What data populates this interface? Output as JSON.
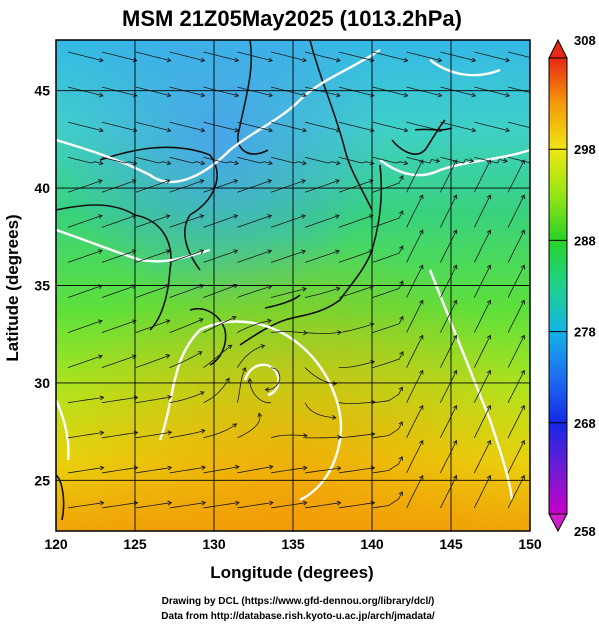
{
  "title": "MSM 21Z05May2025 (1013.2hPa)",
  "map": {
    "lon_min": 120,
    "lon_max": 150,
    "lat_min": 22.4,
    "lat_max": 47.6,
    "x_ticks": [
      "120",
      "125",
      "130",
      "135",
      "140",
      "145",
      "150"
    ],
    "y_ticks": [
      "25",
      "30",
      "35",
      "40",
      "45"
    ],
    "xlabel": "Longitude (degrees)",
    "ylabel": "Latitude  (degrees)"
  },
  "colorbar": {
    "min": 258,
    "max": 308,
    "ticks": [
      "258",
      "268",
      "278",
      "288",
      "298",
      "308"
    ]
  },
  "credits": {
    "line1": "Drawing by DCL (https://www.gfd-dennou.org/library/dcl/)",
    "line2": "Data from http://database.rish.kyoto-u.ac.jp/arch/jmadata/"
  }
}
